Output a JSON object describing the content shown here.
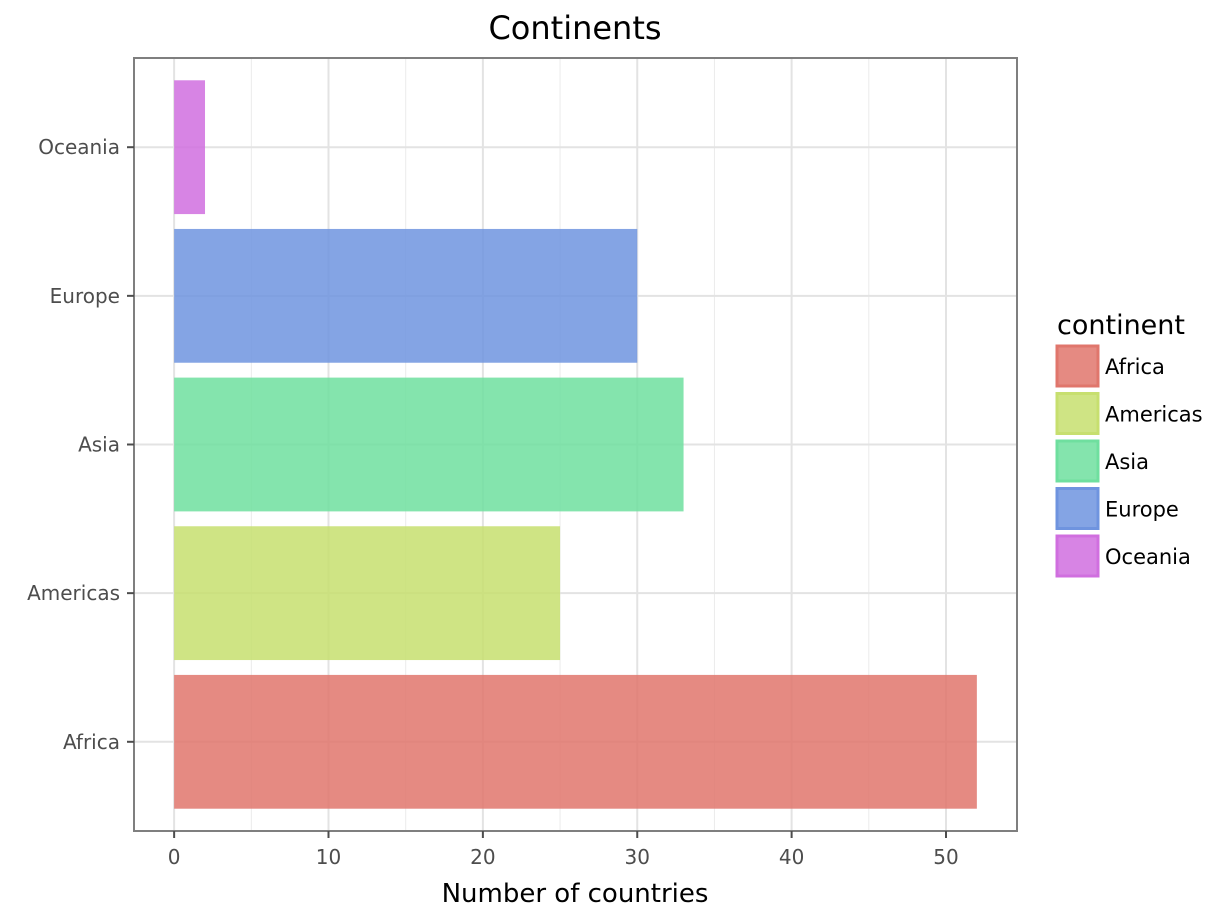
{
  "chart_data": {
    "type": "bar",
    "orientation": "horizontal",
    "title": "Continents",
    "xlabel": "Number of countries",
    "ylabel": "",
    "categories": [
      "Africa",
      "Americas",
      "Asia",
      "Europe",
      "Oceania"
    ],
    "values": [
      52,
      25,
      33,
      30,
      2
    ],
    "colors": [
      "#e0766c",
      "#c7df6f",
      "#6fdf9f",
      "#6f94df",
      "#d06fdf"
    ],
    "xlim": [
      -2.6,
      54.6
    ],
    "xticks": [
      0,
      10,
      20,
      30,
      40,
      50
    ],
    "grid": true,
    "legend": {
      "title": "continent",
      "position": "right",
      "entries": [
        "Africa",
        "Americas",
        "Asia",
        "Europe",
        "Oceania"
      ]
    }
  }
}
